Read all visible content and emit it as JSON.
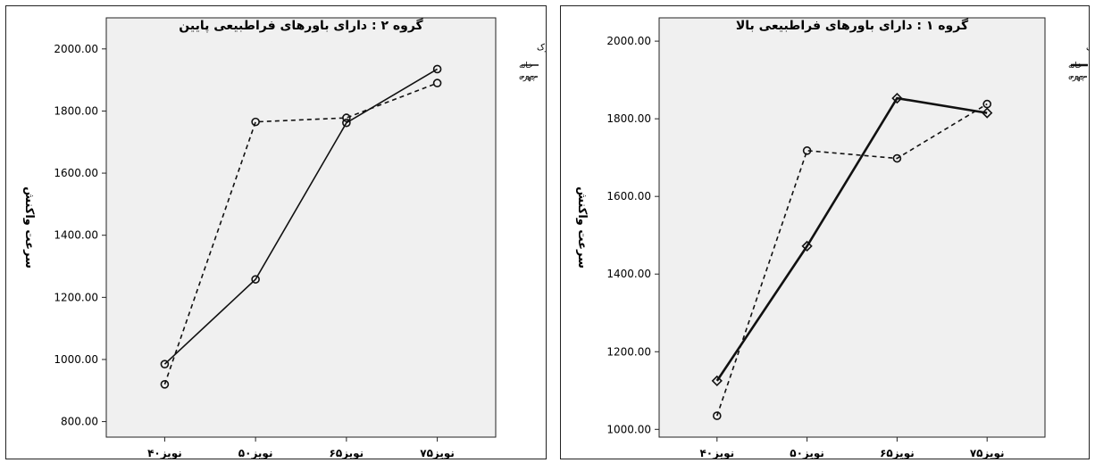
{
  "colors": {
    "plot_bg": "#f0f0f0",
    "line": "#111111",
    "frame": "#222222"
  },
  "chart_data": [
    {
      "type": "line",
      "title": "گروه ۲ : دارای باورهای فراطبیعی پایین",
      "xlabel": "",
      "ylabel": "سرعت واکنش",
      "categories": [
        "نویز۴۰",
        "نویز۵۰",
        "نویز۶۵",
        "نویز۷۵"
      ],
      "ylim": [
        750,
        2100
      ],
      "yticks": [
        "800.00",
        "1000.00",
        "1200.00",
        "1400.00",
        "1600.00",
        "1800.00",
        "2000.00"
      ],
      "legend_title": "محرک",
      "legend_position": "top-right",
      "series": [
        {
          "name": "خانه",
          "style": "solid",
          "marker": "circle",
          "values": [
            985,
            1258,
            1762,
            1935
          ]
        },
        {
          "name": "چهره",
          "style": "dashed",
          "marker": "circle",
          "values": [
            920,
            1765,
            1778,
            1890
          ]
        }
      ]
    },
    {
      "type": "line",
      "title": "گروه ۱ : دارای باورهای فراطبیعی بالا",
      "xlabel": "",
      "ylabel": "سرعت واکنش",
      "categories": [
        "نویز۴۰",
        "نویز۵۰",
        "نویز۶۵",
        "نویز۷۵"
      ],
      "ylim": [
        980,
        2060
      ],
      "yticks": [
        "1000.00",
        "1200.00",
        "1400.00",
        "1600.00",
        "1800.00",
        "2000.00"
      ],
      "legend_title": "محرک",
      "legend_position": "top-right",
      "series": [
        {
          "name": "خانه",
          "style": "solid",
          "marker": "diamond",
          "values": [
            1125,
            1472,
            1853,
            1815
          ]
        },
        {
          "name": "چهره",
          "style": "dashed",
          "marker": "circle",
          "values": [
            1035,
            1718,
            1698,
            1838
          ]
        }
      ]
    }
  ]
}
